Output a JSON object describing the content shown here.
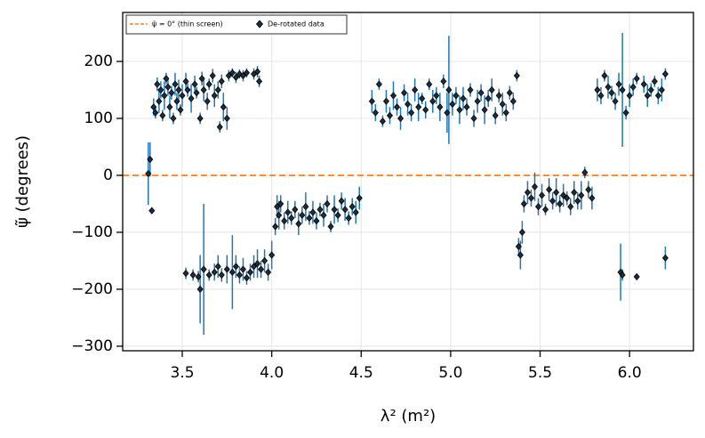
{
  "chart_data": {
    "type": "scatter",
    "xlabel": "λ² (m²)",
    "ylabel": "ψ̃ (degrees)",
    "xlim": [
      3.167,
      6.357
    ],
    "ylim": [
      -308,
      286
    ],
    "xticks": [
      3.5,
      {
        "value": 4,
        "label": "4.0"
      },
      4.5,
      {
        "value": 5,
        "label": "5.0"
      },
      5.5,
      {
        "value": 6,
        "label": "6.0"
      }
    ],
    "yticks": [
      {
        "value": -300,
        "label": "−300"
      },
      {
        "value": -200,
        "label": "−200"
      },
      {
        "value": -100,
        "label": "−100"
      },
      0,
      100,
      200
    ],
    "grid": true,
    "legend": "upper left",
    "hline": {
      "value": 0,
      "name": "ψ̃ = 0° (thin screen)",
      "color": "#ff7f0e"
    },
    "series": [
      {
        "name": "De-rotated data",
        "color": "#1f2d3d",
        "error_color": "#1f77b4",
        "x": [
          3.31,
          3.32,
          3.33,
          3.34,
          3.35,
          3.36,
          3.37,
          3.38,
          3.39,
          3.4,
          3.41,
          3.42,
          3.43,
          3.44,
          3.45,
          3.46,
          3.47,
          3.48,
          3.49,
          3.5,
          3.52,
          3.53,
          3.55,
          3.57,
          3.58,
          3.6,
          3.61,
          3.62,
          3.64,
          3.65,
          3.67,
          3.68,
          3.7,
          3.71,
          3.72,
          3.73,
          3.75,
          3.76,
          3.78,
          3.8,
          3.82,
          3.84,
          3.86,
          3.9,
          3.92,
          3.93,
          3.52,
          3.56,
          3.59,
          3.6,
          3.62,
          3.65,
          3.68,
          3.7,
          3.72,
          3.75,
          3.78,
          3.8,
          3.82,
          3.84,
          3.86,
          3.88,
          3.9,
          3.92,
          3.94,
          3.96,
          3.98,
          4.0,
          4.02,
          4.03,
          4.04,
          4.05,
          4.07,
          4.09,
          4.11,
          4.13,
          4.15,
          4.17,
          4.19,
          4.21,
          4.23,
          4.25,
          4.27,
          4.29,
          4.31,
          4.33,
          4.35,
          4.37,
          4.39,
          4.41,
          4.43,
          4.45,
          4.47,
          4.49,
          4.56,
          4.58,
          4.6,
          4.62,
          4.64,
          4.66,
          4.68,
          4.7,
          4.72,
          4.74,
          4.76,
          4.78,
          4.8,
          4.82,
          4.84,
          4.86,
          4.88,
          4.9,
          4.92,
          4.94,
          4.96,
          4.98,
          4.99,
          5.01,
          5.03,
          5.05,
          5.07,
          5.09,
          5.11,
          5.13,
          5.15,
          5.17,
          5.19,
          5.21,
          5.23,
          5.25,
          5.27,
          5.29,
          5.31,
          5.33,
          5.35,
          5.37,
          5.38,
          5.39,
          5.4,
          5.41,
          5.43,
          5.45,
          5.47,
          5.49,
          5.51,
          5.53,
          5.55,
          5.57,
          5.59,
          5.61,
          5.63,
          5.65,
          5.67,
          5.69,
          5.71,
          5.73,
          5.75,
          5.77,
          5.79,
          5.82,
          5.84,
          5.86,
          5.88,
          5.9,
          5.92,
          5.94,
          5.96,
          5.98,
          6.0,
          6.02,
          6.04,
          6.08,
          6.1,
          6.12,
          6.14,
          6.16,
          6.18,
          6.2,
          5.95,
          5.96,
          6.04,
          6.2
        ],
        "values": [
          3,
          28,
          -62,
          120,
          110,
          160,
          130,
          150,
          105,
          140,
          170,
          155,
          120,
          145,
          100,
          160,
          130,
          150,
          115,
          140,
          165,
          150,
          135,
          160,
          145,
          100,
          170,
          150,
          130,
          160,
          175,
          140,
          150,
          85,
          165,
          120,
          100,
          175,
          180,
          172,
          178,
          175,
          180,
          178,
          182,
          165,
          -172,
          -175,
          -178,
          -200,
          -165,
          -175,
          -170,
          -160,
          -175,
          -165,
          -170,
          -160,
          -175,
          -165,
          -180,
          -170,
          -160,
          -155,
          -165,
          -150,
          -170,
          -140,
          -90,
          -55,
          -70,
          -50,
          -80,
          -65,
          -75,
          -60,
          -85,
          -70,
          -55,
          -75,
          -65,
          -80,
          -60,
          -70,
          -50,
          -90,
          -60,
          -70,
          -45,
          -60,
          -75,
          -55,
          -65,
          -40,
          130,
          110,
          160,
          95,
          130,
          105,
          140,
          120,
          100,
          145,
          125,
          110,
          150,
          120,
          135,
          115,
          160,
          130,
          140,
          120,
          165,
          110,
          150,
          125,
          140,
          115,
          135,
          120,
          150,
          100,
          130,
          145,
          115,
          135,
          150,
          105,
          140,
          125,
          110,
          145,
          130,
          175,
          -125,
          -140,
          -100,
          -50,
          -30,
          -40,
          -20,
          -55,
          -35,
          -60,
          -25,
          -45,
          -30,
          -50,
          -35,
          -40,
          -55,
          -30,
          -45,
          -35,
          5,
          -25,
          -40,
          150,
          140,
          175,
          155,
          145,
          130,
          160,
          150,
          110,
          140,
          155,
          170,
          160,
          140,
          150,
          165,
          140,
          150,
          178,
          -170,
          -175,
          -178,
          -145
        ],
        "errors": [
          55,
          30,
          5,
          15,
          10,
          12,
          20,
          15,
          10,
          25,
          10,
          15,
          20,
          12,
          10,
          20,
          15,
          18,
          10,
          20,
          15,
          12,
          25,
          15,
          10,
          10,
          12,
          20,
          15,
          10,
          12,
          20,
          15,
          10,
          12,
          25,
          20,
          10,
          8,
          10,
          8,
          10,
          8,
          10,
          10,
          10,
          10,
          10,
          10,
          60,
          115,
          10,
          15,
          20,
          12,
          25,
          65,
          20,
          15,
          20,
          12,
          15,
          20,
          25,
          15,
          20,
          15,
          25,
          15,
          20,
          25,
          15,
          15,
          20,
          12,
          15,
          20,
          15,
          25,
          12,
          20,
          15,
          12,
          20,
          15,
          10,
          25,
          12,
          15,
          20,
          12,
          15,
          20,
          20,
          20,
          15,
          10,
          10,
          20,
          15,
          25,
          15,
          20,
          15,
          20,
          15,
          20,
          25,
          10,
          15,
          10,
          20,
          15,
          25,
          12,
          35,
          95,
          20,
          15,
          25,
          20,
          15,
          12,
          15,
          20,
          15,
          25,
          15,
          20,
          15,
          12,
          20,
          15,
          12,
          15,
          10,
          15,
          25,
          20,
          15,
          20,
          15,
          25,
          15,
          20,
          10,
          20,
          15,
          25,
          15,
          20,
          12,
          15,
          20,
          15,
          25,
          10,
          15,
          20,
          20,
          15,
          10,
          20,
          12,
          15,
          20,
          100,
          12,
          20,
          15,
          10,
          15,
          20,
          12,
          10,
          15,
          20,
          10,
          50,
          10,
          5,
          20
        ]
      }
    ]
  }
}
